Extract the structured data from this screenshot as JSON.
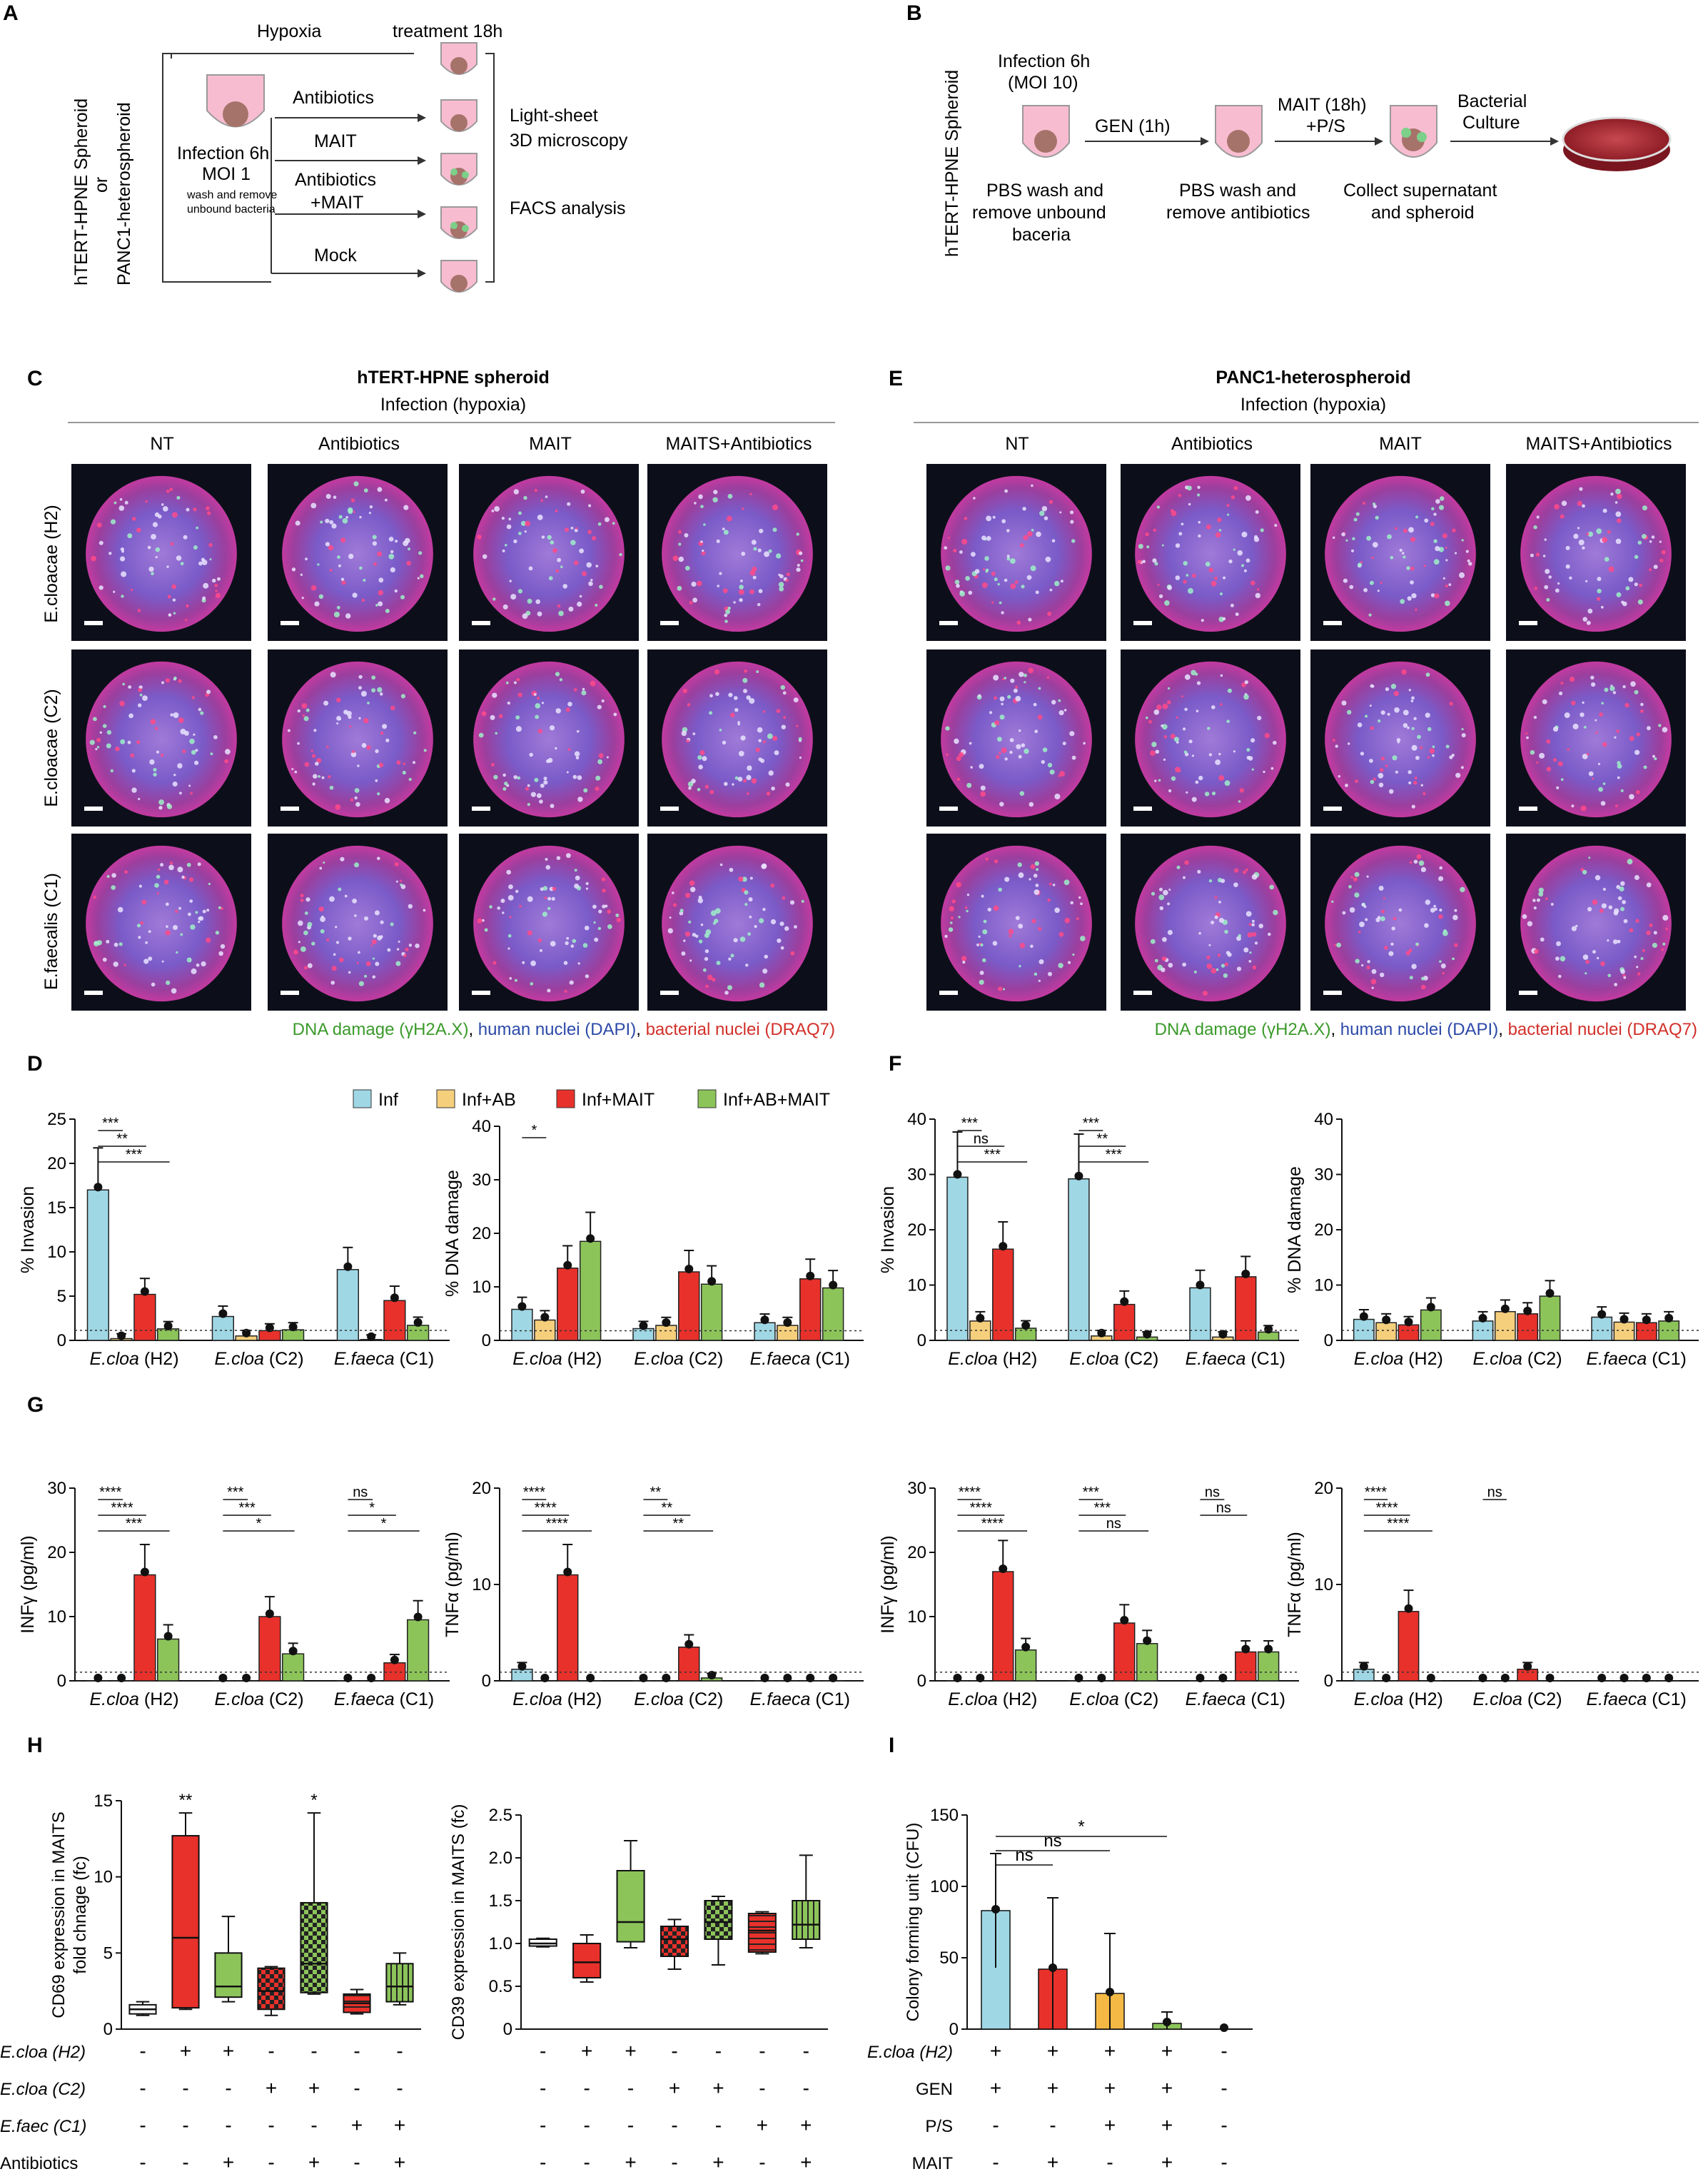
{
  "colors": {
    "inf": "#9fd7e5",
    "inf_ab": "#f6cf7c",
    "inf_mait": "#e8312b",
    "inf_ab_mait": "#8cc45a",
    "legend_green": "#3a9a2a",
    "legend_blue": "#2c49a8",
    "legend_red": "#d2302a",
    "ab_bar": "#f4b945"
  },
  "panelA": {
    "letter": "A",
    "side_label_1": "hTERT-HPNE Spheroid",
    "side_label_2": "or",
    "side_label_3": "PANC1-heterospheroid",
    "hypoxia": "Hypoxia",
    "treatment": "treatment 18h",
    "infection": "Infection 6h",
    "moi": "MOI 1",
    "wash1": "wash and remove",
    "wash2": "unbound bacteria",
    "arrows": [
      "Antibiotics",
      "MAIT",
      "Antibiotics",
      "+MAIT",
      "Mock"
    ],
    "readout1": "Light-sheet",
    "readout2": "3D microscopy",
    "readout3": "FACS analysis"
  },
  "panelB": {
    "letter": "B",
    "side_label": "hTERT-HPNE Spheroid",
    "infection": "Infection 6h",
    "moi": "(MOI 10)",
    "gen": "GEN (1h)",
    "mait1": "MAIT (18h)",
    "mait2": "+P/S",
    "culture1": "Bacterial",
    "culture2": "Culture",
    "pbs1a": "PBS wash and",
    "pbs1b": "remove unbound",
    "pbs1c": "baceria",
    "pbs2a": "PBS wash and",
    "pbs2b": "remove antibiotics",
    "collect1": "Collect supernatant",
    "collect2": "and spheroid"
  },
  "panelC": {
    "letter": "C",
    "title": "hTERT-HPNE spheroid",
    "subtitle": "Infection (hypoxia)",
    "columns": [
      "NT",
      "Antibiotics",
      "MAIT",
      "MAITS+Antibiotics"
    ],
    "rows": [
      "E.cloacae (H2)",
      "E.cloacae (C2)",
      "E.faecalis (C1)"
    ]
  },
  "panelE": {
    "letter": "E",
    "title": "PANC1-heterospheroid",
    "subtitle": "Infection (hypoxia)",
    "columns": [
      "NT",
      "Antibiotics",
      "MAIT",
      "MAITS+Antibiotics"
    ]
  },
  "stain_legend": {
    "green": "DNA damage (γH2A.X)",
    "sep1": ", ",
    "blue": "human nuclei (DAPI)",
    "sep2": ", ",
    "red": "bacterial nuclei (DRAQ7)"
  },
  "legend": [
    "Inf",
    "Inf+AB",
    "Inf+MAIT",
    "Inf+AB+MAIT"
  ],
  "letters": {
    "D": "D",
    "F": "F",
    "G": "G",
    "H": "H",
    "I": "I"
  },
  "chart_data": [
    {
      "id": "D1",
      "type": "bar",
      "ylabel": "% Invasion",
      "ylim": [
        0,
        25
      ],
      "yticks": [
        0,
        5,
        10,
        15,
        20,
        25
      ],
      "groups": [
        "E.cloa (H2)",
        "E.cloa (C2)",
        "E.faeca (C1)"
      ],
      "series": [
        {
          "name": "Inf",
          "values": [
            17,
            2.7,
            8
          ]
        },
        {
          "name": "Inf+AB",
          "values": [
            0.2,
            0.5,
            0.1
          ]
        },
        {
          "name": "Inf+MAIT",
          "values": [
            5.2,
            1.1,
            4.5
          ]
        },
        {
          "name": "Inf+AB+MAIT",
          "values": [
            1.3,
            1.2,
            1.7
          ]
        }
      ],
      "sig": [
        "***",
        "**",
        "***"
      ]
    },
    {
      "id": "D2",
      "type": "bar",
      "ylabel": "% DNA damage",
      "ylim": [
        0,
        40
      ],
      "yticks": [
        0,
        10,
        20,
        30,
        40
      ],
      "groups": [
        "E.cloa (H2)",
        "E.cloa (C2)",
        "E.faeca (C1)"
      ],
      "series": [
        {
          "name": "Inf",
          "values": [
            5.8,
            2.2,
            3.3
          ]
        },
        {
          "name": "Inf+AB",
          "values": [
            3.8,
            2.8,
            2.8
          ]
        },
        {
          "name": "Inf+MAIT",
          "values": [
            13.5,
            12.8,
            11.5
          ]
        },
        {
          "name": "Inf+AB+MAIT",
          "values": [
            18.5,
            10.5,
            9.8
          ]
        }
      ],
      "sig": [
        "*"
      ]
    },
    {
      "id": "F1",
      "type": "bar",
      "ylabel": "% Invasion",
      "ylim": [
        0,
        40
      ],
      "yticks": [
        0,
        10,
        20,
        30,
        40
      ],
      "groups": [
        "E.cloa (H2)",
        "E.cloa (C2)",
        "E.faeca (C1)"
      ],
      "series": [
        {
          "name": "Inf",
          "values": [
            29.5,
            29.2,
            9.5
          ]
        },
        {
          "name": "Inf+AB",
          "values": [
            3.5,
            0.8,
            0.6
          ]
        },
        {
          "name": "Inf+MAIT",
          "values": [
            16.5,
            6.5,
            11.5
          ]
        },
        {
          "name": "Inf+AB+MAIT",
          "values": [
            2.2,
            0.6,
            1.5
          ]
        }
      ],
      "sig": [
        "***",
        "ns",
        "***",
        "***",
        "**",
        "***"
      ]
    },
    {
      "id": "F2",
      "type": "bar",
      "ylabel": "% DNA damage",
      "ylim": [
        0,
        40
      ],
      "yticks": [
        0,
        10,
        20,
        30,
        40
      ],
      "groups": [
        "E.cloa (H2)",
        "E.cloa (C2)",
        "E.faeca (C1)"
      ],
      "series": [
        {
          "name": "Inf",
          "values": [
            3.8,
            3.5,
            4.2
          ]
        },
        {
          "name": "Inf+AB",
          "values": [
            3.2,
            5.2,
            3.3
          ]
        },
        {
          "name": "Inf+MAIT",
          "values": [
            2.8,
            4.8,
            3.2
          ]
        },
        {
          "name": "Inf+AB+MAIT",
          "values": [
            5.5,
            8.0,
            3.5
          ]
        }
      ]
    },
    {
      "id": "G1",
      "type": "bar",
      "ylabel": "INFγ (pg/ml)",
      "ylim": [
        0,
        30
      ],
      "yticks": [
        0,
        10,
        20,
        30
      ],
      "groups": [
        "E.cloa (H2)",
        "E.cloa (C2)",
        "E.faeca (C1)"
      ],
      "series": [
        {
          "name": "Inf",
          "values": [
            0,
            0,
            0
          ]
        },
        {
          "name": "Inf+AB",
          "values": [
            0,
            0,
            0
          ]
        },
        {
          "name": "Inf+MAIT",
          "values": [
            16.5,
            10,
            2.8
          ]
        },
        {
          "name": "Inf+AB+MAIT",
          "values": [
            6.5,
            4.2,
            9.5
          ]
        }
      ],
      "sig": [
        "****",
        "****",
        "***",
        "***",
        "***",
        "*",
        "ns",
        "*",
        "*"
      ]
    },
    {
      "id": "G2",
      "type": "bar",
      "ylabel": "TNFα (pg/ml)",
      "ylim": [
        0,
        20
      ],
      "yticks": [
        0,
        10,
        20
      ],
      "groups": [
        "E.cloa (H2)",
        "E.cloa (C2)",
        "E.faeca (C1)"
      ],
      "series": [
        {
          "name": "Inf",
          "values": [
            1.2,
            0,
            0
          ]
        },
        {
          "name": "Inf+AB",
          "values": [
            0,
            0,
            0
          ]
        },
        {
          "name": "Inf+MAIT",
          "values": [
            11,
            3.5,
            0
          ]
        },
        {
          "name": "Inf+AB+MAIT",
          "values": [
            0,
            0.3,
            0
          ]
        }
      ],
      "sig": [
        "****",
        "****",
        "****",
        "**",
        "**",
        "**"
      ]
    },
    {
      "id": "G3",
      "type": "bar",
      "ylabel": "INFγ (pg/ml)",
      "ylim": [
        0,
        30
      ],
      "yticks": [
        0,
        10,
        20,
        30
      ],
      "groups": [
        "E.cloa (H2)",
        "E.cloa (C2)",
        "E.faeca (C1)"
      ],
      "series": [
        {
          "name": "Inf",
          "values": [
            0,
            0,
            0
          ]
        },
        {
          "name": "Inf+AB",
          "values": [
            0,
            0,
            0
          ]
        },
        {
          "name": "Inf+MAIT",
          "values": [
            17,
            9,
            4.5
          ]
        },
        {
          "name": "Inf+AB+MAIT",
          "values": [
            4.8,
            5.8,
            4.5
          ]
        }
      ],
      "sig": [
        "****",
        "****",
        "****",
        "***",
        "***",
        "ns",
        "ns",
        "ns"
      ]
    },
    {
      "id": "G4",
      "type": "bar",
      "ylabel": "TNFα (pg/ml)",
      "ylim": [
        0,
        20
      ],
      "yticks": [
        0,
        10,
        20
      ],
      "groups": [
        "E.cloa (H2)",
        "E.cloa (C2)",
        "E.faeca (C1)"
      ],
      "series": [
        {
          "name": "Inf",
          "values": [
            1.2,
            0,
            0
          ]
        },
        {
          "name": "Inf+AB",
          "values": [
            0,
            0,
            0
          ]
        },
        {
          "name": "Inf+MAIT",
          "values": [
            7.2,
            1.2,
            0
          ]
        },
        {
          "name": "Inf+AB+MAIT",
          "values": [
            0,
            0,
            0
          ]
        }
      ],
      "sig": [
        "****",
        "****",
        "****",
        "ns"
      ]
    },
    {
      "id": "H1",
      "type": "box",
      "ylabel": "CD69 expression in MAITS",
      "ylabel2": "fold chnage (fc)",
      "ylim": [
        0,
        15
      ],
      "yticks": [
        0,
        5,
        10,
        15
      ],
      "boxes": [
        {
          "min": 0.9,
          "q1": 1.0,
          "median": 1.3,
          "q3": 1.6,
          "max": 1.8,
          "sig": ""
        },
        {
          "min": 1.3,
          "q1": 1.4,
          "median": 6.0,
          "q3": 12.7,
          "max": 14.2,
          "sig": "**"
        },
        {
          "min": 1.8,
          "q1": 2.1,
          "median": 2.8,
          "q3": 5.0,
          "max": 7.4,
          "sig": ""
        },
        {
          "min": 0.9,
          "q1": 1.3,
          "median": 2.5,
          "q3": 4.0,
          "max": 4.1,
          "sig": ""
        },
        {
          "min": 2.3,
          "q1": 2.4,
          "median": 4.3,
          "q3": 8.3,
          "max": 14.2,
          "sig": "*"
        },
        {
          "min": 1.0,
          "q1": 1.1,
          "median": 1.7,
          "q3": 2.3,
          "max": 2.6,
          "sig": ""
        },
        {
          "min": 1.6,
          "q1": 1.8,
          "median": 2.8,
          "q3": 4.3,
          "max": 5.0,
          "sig": ""
        }
      ],
      "conditions": [
        {
          "label": "E.cloa (H2)",
          "signs": [
            "-",
            "+",
            "+",
            "-",
            "-",
            "-",
            "-"
          ]
        },
        {
          "label": "E.cloa (C2)",
          "signs": [
            "-",
            "-",
            "-",
            "+",
            "+",
            "-",
            "-"
          ]
        },
        {
          "label": "E.faec (C1)",
          "signs": [
            "-",
            "-",
            "-",
            "-",
            "-",
            "+",
            "+"
          ]
        },
        {
          "label": "Antibiotics",
          "signs": [
            "-",
            "-",
            "+",
            "-",
            "+",
            "-",
            "+"
          ]
        }
      ]
    },
    {
      "id": "H2",
      "type": "box",
      "ylabel": "CD39 expression in MAITS (fc)",
      "ylim": [
        0,
        2.5
      ],
      "yticks": [
        "0",
        "0.5",
        "1.0",
        "1.5",
        "2.0",
        "2.5"
      ],
      "boxes": [
        {
          "min": 0.96,
          "q1": 0.97,
          "median": 1.0,
          "q3": 1.05,
          "max": 1.06
        },
        {
          "min": 0.55,
          "q1": 0.6,
          "median": 0.78,
          "q3": 1.0,
          "max": 1.1
        },
        {
          "min": 0.95,
          "q1": 1.02,
          "median": 1.25,
          "q3": 1.85,
          "max": 2.2
        },
        {
          "min": 0.7,
          "q1": 0.85,
          "median": 1.05,
          "q3": 1.2,
          "max": 1.28
        },
        {
          "min": 0.75,
          "q1": 1.05,
          "median": 1.25,
          "q3": 1.5,
          "max": 1.55
        },
        {
          "min": 0.88,
          "q1": 0.9,
          "median": 1.15,
          "q3": 1.35,
          "max": 1.37
        },
        {
          "min": 0.95,
          "q1": 1.05,
          "median": 1.22,
          "q3": 1.5,
          "max": 2.03
        }
      ]
    },
    {
      "id": "I",
      "type": "bar",
      "ylabel": "Colony forming unit (CFU)",
      "ylim": [
        0,
        150
      ],
      "yticks": [
        0,
        50,
        100,
        150
      ],
      "values": [
        83,
        42,
        25,
        4,
        0
      ],
      "errors": [
        40,
        50,
        42,
        8,
        0
      ],
      "sig": [
        "ns",
        "ns",
        "*"
      ],
      "conditions": [
        {
          "label": "E.cloa (H2)",
          "signs": [
            "+",
            "+",
            "+",
            "+",
            "-"
          ]
        },
        {
          "label": "GEN",
          "signs": [
            "+",
            "+",
            "+",
            "+",
            "-"
          ]
        },
        {
          "label": "P/S",
          "signs": [
            "-",
            "-",
            "+",
            "+",
            "-"
          ]
        },
        {
          "label": "MAIT",
          "signs": [
            "-",
            "+",
            "-",
            "+",
            "-"
          ]
        }
      ]
    }
  ]
}
